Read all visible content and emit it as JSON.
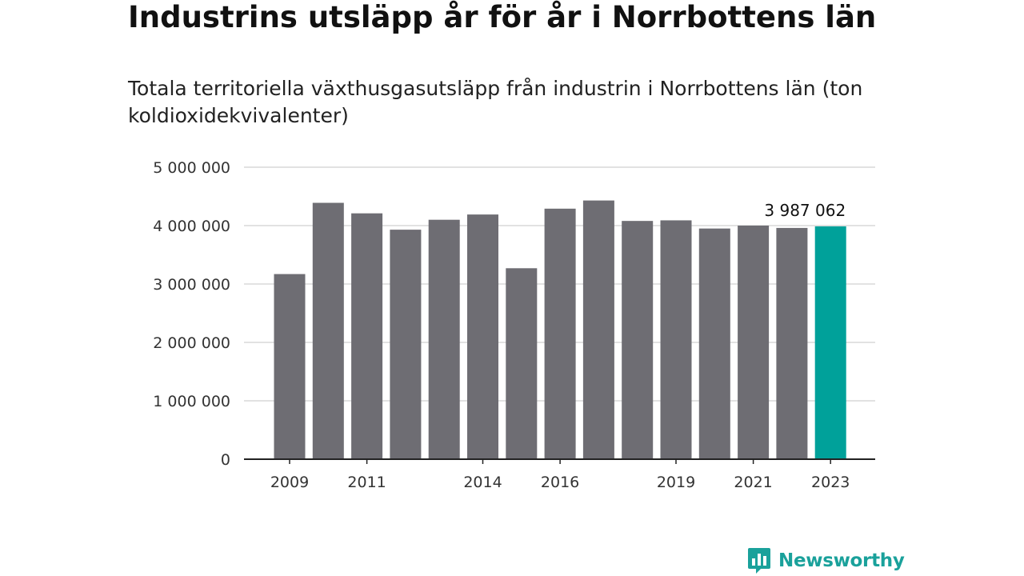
{
  "title": "Industrins utsläpp år för år i Norrbottens län",
  "subtitle": "Totala territoriella växthusgasutsläpp från industrin i Norrbottens län (ton koldioxidekvivalenter)",
  "logo": {
    "text": "Newsworthy",
    "icon": "bar-chart-speech-bubble-icon"
  },
  "colors": {
    "bar": "#6e6d73",
    "highlight": "#00a19a",
    "grid": "#d9d9d9",
    "axis": "#222222",
    "brand": "#1aa19b"
  },
  "chart_data": {
    "type": "bar",
    "categories": [
      "2009",
      "2010",
      "2011",
      "2012",
      "2013",
      "2014",
      "2015",
      "2016",
      "2017",
      "2018",
      "2019",
      "2020",
      "2021",
      "2022",
      "2023"
    ],
    "values": [
      3170000,
      4390000,
      4210000,
      3930000,
      4100000,
      4190000,
      3270000,
      4290000,
      4430000,
      4080000,
      4090000,
      3950000,
      4000000,
      3960000,
      3987062
    ],
    "x_tick_labels": [
      "2009",
      "",
      "2011",
      "",
      "",
      "2014",
      "",
      "2016",
      "",
      "",
      "2019",
      "",
      "2021",
      "",
      "2023"
    ],
    "y_ticks": [
      0,
      1000000,
      2000000,
      3000000,
      4000000,
      5000000
    ],
    "y_tick_labels": [
      "0",
      "1 000 000",
      "2 000 000",
      "3 000 000",
      "4 000 000",
      "5 000 000"
    ],
    "ylim": [
      0,
      5000000
    ],
    "highlight_index": 14,
    "annotation": {
      "index": 14,
      "text": "3 987 062"
    },
    "grid": true,
    "xlabel": "",
    "ylabel": ""
  }
}
